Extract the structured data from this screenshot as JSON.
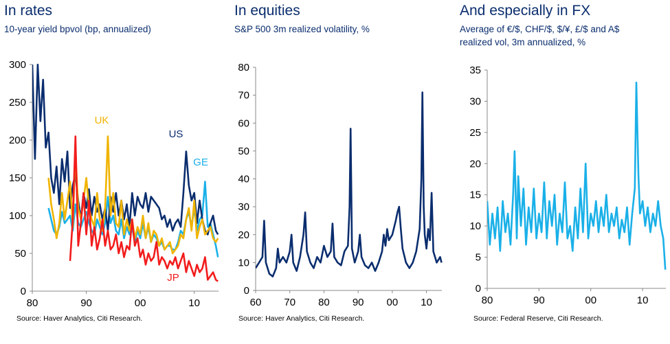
{
  "chart_data": [
    {
      "type": "line",
      "title": "In rates",
      "subtitle": "10-year yield bpvol (bp, annualized)",
      "source": "Source: Haver Analytics, Citi Research.",
      "xlim": [
        1980,
        2014.5
      ],
      "ylim": [
        0,
        300
      ],
      "x_ticks": [
        1980,
        1990,
        2000,
        2010
      ],
      "x_tick_labels": [
        "80",
        "90",
        "00",
        "10"
      ],
      "y_ticks": [
        0,
        50,
        100,
        150,
        200,
        250,
        300
      ],
      "y_tick_labels": [
        "0",
        "50",
        "100",
        "150",
        "200",
        "250",
        "300"
      ],
      "series": [
        {
          "name": "US",
          "color": "#0a2d6e",
          "x": [
            1980.0,
            1980.5,
            1981.0,
            1981.5,
            1982.0,
            1982.5,
            1983.0,
            1983.5,
            1984.0,
            1984.5,
            1985.0,
            1985.5,
            1986.0,
            1986.5,
            1987.0,
            1987.5,
            1988.0,
            1988.5,
            1989.0,
            1989.5,
            1990.0,
            1990.5,
            1991.0,
            1991.5,
            1992.0,
            1992.5,
            1993.0,
            1993.5,
            1994.0,
            1994.5,
            1995.0,
            1995.5,
            1996.0,
            1996.5,
            1997.0,
            1997.5,
            1998.0,
            1998.5,
            1999.0,
            1999.5,
            2000.0,
            2000.5,
            2001.0,
            2001.5,
            2002.0,
            2002.5,
            2003.0,
            2003.5,
            2004.0,
            2004.5,
            2005.0,
            2005.5,
            2006.0,
            2006.5,
            2007.0,
            2007.5,
            2008.0,
            2008.5,
            2009.0,
            2009.5,
            2010.0,
            2010.5,
            2011.0,
            2011.5,
            2012.0,
            2012.5,
            2013.0,
            2013.5,
            2014.0,
            2014.4
          ],
          "values": [
            300,
            175,
            300,
            225,
            280,
            190,
            210,
            150,
            130,
            165,
            115,
            175,
            145,
            185,
            110,
            140,
            155,
            120,
            95,
            130,
            110,
            135,
            100,
            125,
            105,
            115,
            95,
            110,
            80,
            125,
            105,
            130,
            100,
            120,
            95,
            115,
            85,
            130,
            100,
            125,
            115,
            110,
            130,
            105,
            125,
            120,
            115,
            110,
            95,
            100,
            85,
            95,
            80,
            90,
            95,
            85,
            130,
            185,
            140,
            120,
            130,
            90,
            120,
            95,
            80,
            75,
            90,
            100,
            80,
            75
          ]
        },
        {
          "name": "UK",
          "color": "#f0b400",
          "x": [
            1983.0,
            1983.5,
            1984.0,
            1984.5,
            1985.0,
            1985.5,
            1986.0,
            1986.5,
            1987.0,
            1987.5,
            1988.0,
            1988.5,
            1989.0,
            1989.5,
            1990.0,
            1990.5,
            1991.0,
            1991.5,
            1992.0,
            1992.5,
            1993.0,
            1993.5,
            1994.0,
            1994.5,
            1995.0,
            1995.5,
            1996.0,
            1996.5,
            1997.0,
            1997.5,
            1998.0,
            1998.5,
            1999.0,
            1999.5,
            2000.0,
            2000.5,
            2001.0,
            2001.5,
            2002.0,
            2002.5,
            2003.0,
            2003.5,
            2004.0,
            2004.5,
            2005.0,
            2005.5,
            2006.0,
            2006.5,
            2007.0,
            2007.5,
            2008.0,
            2008.5,
            2009.0,
            2009.5,
            2010.0,
            2010.5,
            2011.0,
            2011.5,
            2012.0,
            2012.5,
            2013.0,
            2013.5,
            2014.0,
            2014.4
          ],
          "values": [
            150,
            115,
            95,
            70,
            90,
            130,
            95,
            120,
            145,
            85,
            185,
            110,
            95,
            120,
            150,
            110,
            95,
            85,
            130,
            95,
            80,
            110,
            205,
            100,
            130,
            90,
            85,
            120,
            75,
            95,
            80,
            95,
            70,
            85,
            75,
            100,
            70,
            90,
            65,
            80,
            75,
            60,
            70,
            55,
            60,
            65,
            50,
            55,
            60,
            75,
            70,
            95,
            110,
            80,
            120,
            70,
            85,
            95,
            75,
            80,
            85,
            70,
            65,
            70
          ]
        },
        {
          "name": "GE",
          "color": "#1ab0e8",
          "x": [
            1983.0,
            1983.5,
            1984.0,
            1984.5,
            1985.0,
            1985.5,
            1986.0,
            1986.5,
            1987.0,
            1987.5,
            1988.0,
            1988.5,
            1989.0,
            1989.5,
            1990.0,
            1990.5,
            1991.0,
            1991.5,
            1992.0,
            1992.5,
            1993.0,
            1993.5,
            1994.0,
            1994.5,
            1995.0,
            1995.5,
            1996.0,
            1996.5,
            1997.0,
            1997.5,
            1998.0,
            1998.5,
            1999.0,
            1999.5,
            2000.0,
            2000.5,
            2001.0,
            2001.5,
            2002.0,
            2002.5,
            2003.0,
            2003.5,
            2004.0,
            2004.5,
            2005.0,
            2005.5,
            2006.0,
            2006.5,
            2007.0,
            2007.5,
            2008.0,
            2008.5,
            2009.0,
            2009.5,
            2010.0,
            2010.5,
            2011.0,
            2011.5,
            2012.0,
            2012.5,
            2013.0,
            2013.5,
            2014.0,
            2014.4
          ],
          "values": [
            110,
            95,
            80,
            75,
            85,
            105,
            90,
            95,
            100,
            80,
            115,
            90,
            85,
            95,
            105,
            90,
            80,
            75,
            95,
            85,
            75,
            90,
            125,
            90,
            100,
            80,
            75,
            95,
            70,
            85,
            75,
            85,
            65,
            80,
            70,
            90,
            70,
            85,
            65,
            75,
            70,
            60,
            65,
            55,
            60,
            60,
            55,
            55,
            65,
            80,
            75,
            95,
            105,
            85,
            110,
            80,
            95,
            100,
            145,
            85,
            90,
            75,
            60,
            45
          ]
        },
        {
          "name": "JP",
          "color": "#f21c1c",
          "x": [
            1987.0,
            1987.5,
            1988.0,
            1988.5,
            1989.0,
            1989.5,
            1990.0,
            1990.5,
            1991.0,
            1991.5,
            1992.0,
            1992.5,
            1993.0,
            1993.5,
            1994.0,
            1994.5,
            1995.0,
            1995.5,
            1996.0,
            1996.5,
            1997.0,
            1997.5,
            1998.0,
            1998.5,
            1999.0,
            1999.5,
            2000.0,
            2000.5,
            2001.0,
            2001.5,
            2002.0,
            2002.5,
            2003.0,
            2003.5,
            2004.0,
            2004.5,
            2005.0,
            2005.5,
            2006.0,
            2006.5,
            2007.0,
            2007.5,
            2008.0,
            2008.5,
            2009.0,
            2009.5,
            2010.0,
            2010.5,
            2011.0,
            2011.5,
            2012.0,
            2012.5,
            2013.0,
            2013.5,
            2014.0,
            2014.4
          ],
          "values": [
            40,
            95,
            205,
            60,
            90,
            130,
            75,
            120,
            60,
            85,
            55,
            70,
            95,
            60,
            80,
            55,
            60,
            75,
            50,
            65,
            45,
            60,
            55,
            95,
            60,
            70,
            45,
            55,
            35,
            50,
            40,
            45,
            65,
            35,
            45,
            40,
            30,
            40,
            35,
            45,
            30,
            40,
            50,
            25,
            40,
            30,
            20,
            35,
            25,
            30,
            45,
            15,
            20,
            25,
            15,
            13
          ]
        }
      ]
    },
    {
      "type": "line",
      "title": "In equities",
      "subtitle": "S&P 500 3m realized volatility, %",
      "source": "Source: Haver Analytics, Citi Research.",
      "xlim": [
        1960,
        2014.5
      ],
      "ylim": [
        0,
        80
      ],
      "x_ticks": [
        1960,
        1970,
        1980,
        1990,
        2000,
        2010
      ],
      "x_tick_labels": [
        "60",
        "70",
        "80",
        "90",
        "00",
        "10"
      ],
      "y_ticks": [
        0,
        10,
        20,
        30,
        40,
        50,
        60,
        70,
        80
      ],
      "y_tick_labels": [
        "0",
        "10",
        "20",
        "30",
        "40",
        "50",
        "60",
        "70",
        "80"
      ],
      "series": [
        {
          "name": "",
          "color": "#0a2d6e",
          "x": [
            1960.0,
            1961.0,
            1962.0,
            1962.5,
            1963.0,
            1964.0,
            1965.0,
            1966.0,
            1966.5,
            1967.0,
            1968.0,
            1969.0,
            1970.0,
            1970.5,
            1971.0,
            1972.0,
            1973.0,
            1974.0,
            1974.5,
            1975.0,
            1976.0,
            1977.0,
            1978.0,
            1979.0,
            1980.0,
            1981.0,
            1982.0,
            1982.5,
            1983.0,
            1984.0,
            1985.0,
            1986.0,
            1987.0,
            1987.5,
            1987.8,
            1988.2,
            1989.0,
            1990.0,
            1990.5,
            1991.0,
            1992.0,
            1993.0,
            1994.0,
            1995.0,
            1996.0,
            1997.0,
            1997.5,
            1998.0,
            1998.5,
            1999.0,
            2000.0,
            2001.0,
            2001.5,
            2002.0,
            2002.5,
            2003.0,
            2004.0,
            2005.0,
            2006.0,
            2007.0,
            2008.0,
            2008.5,
            2008.8,
            2009.2,
            2009.5,
            2010.0,
            2010.5,
            2011.0,
            2011.5,
            2012.0,
            2013.0,
            2014.0,
            2014.4
          ],
          "values": [
            8,
            10,
            12,
            25,
            10,
            6,
            5,
            8,
            15,
            10,
            12,
            10,
            14,
            20,
            10,
            7,
            12,
            20,
            28,
            14,
            10,
            8,
            12,
            10,
            16,
            12,
            14,
            24,
            12,
            10,
            9,
            14,
            16,
            30,
            58,
            15,
            10,
            14,
            20,
            12,
            9,
            8,
            10,
            7,
            10,
            14,
            20,
            16,
            22,
            18,
            20,
            25,
            28,
            30,
            22,
            15,
            10,
            8,
            10,
            14,
            22,
            40,
            71,
            30,
            20,
            15,
            22,
            18,
            35,
            14,
            10,
            12,
            10
          ]
        }
      ]
    },
    {
      "type": "line",
      "title": "And especially in FX",
      "subtitle_lines": [
        "Average of €/$, CHF/$, $/¥, £/$ and A$",
        "realized vol, 3m annualized, %"
      ],
      "source": "Source: Federal Reserve, Citi Research.",
      "xlim": [
        1980,
        2014.5
      ],
      "ylim": [
        0,
        35
      ],
      "x_ticks": [
        1980,
        1990,
        2000,
        2010
      ],
      "x_tick_labels": [
        "80",
        "90",
        "00",
        "10"
      ],
      "y_ticks": [
        0,
        5,
        10,
        15,
        20,
        25,
        30,
        35
      ],
      "y_tick_labels": [
        "0",
        "5",
        "10",
        "15",
        "20",
        "25",
        "30",
        "35"
      ],
      "series": [
        {
          "name": "",
          "color": "#1ab0e8",
          "x": [
            1980.0,
            1980.5,
            1981.0,
            1981.5,
            1982.0,
            1982.5,
            1983.0,
            1983.5,
            1984.0,
            1984.5,
            1985.0,
            1985.3,
            1985.7,
            1986.0,
            1986.5,
            1987.0,
            1987.5,
            1988.0,
            1988.5,
            1989.0,
            1989.5,
            1990.0,
            1990.5,
            1991.0,
            1991.5,
            1992.0,
            1992.5,
            1993.0,
            1993.5,
            1994.0,
            1994.5,
            1995.0,
            1995.5,
            1996.0,
            1996.5,
            1997.0,
            1997.5,
            1998.0,
            1998.5,
            1999.0,
            1999.5,
            2000.0,
            2000.5,
            2001.0,
            2001.5,
            2002.0,
            2002.5,
            2003.0,
            2003.5,
            2004.0,
            2004.5,
            2005.0,
            2005.5,
            2006.0,
            2006.5,
            2007.0,
            2007.5,
            2008.0,
            2008.5,
            2008.8,
            2009.2,
            2009.5,
            2010.0,
            2010.5,
            2011.0,
            2011.5,
            2012.0,
            2012.5,
            2013.0,
            2013.5,
            2014.0,
            2014.4
          ],
          "values": [
            14,
            7,
            12,
            8,
            13,
            6,
            14,
            9,
            12,
            7,
            15,
            22,
            8,
            18,
            10,
            16,
            7,
            13,
            9,
            16,
            8,
            12,
            9,
            17,
            8,
            14,
            10,
            15,
            7,
            12,
            9,
            17,
            8,
            10,
            6,
            13,
            8,
            16,
            9,
            20,
            8,
            12,
            10,
            14,
            9,
            13,
            10,
            15,
            9,
            12,
            10,
            13,
            8,
            11,
            9,
            13,
            7,
            12,
            16,
            33,
            18,
            12,
            14,
            10,
            13,
            9,
            12,
            10,
            14,
            10,
            8,
            3
          ]
        }
      ]
    }
  ]
}
